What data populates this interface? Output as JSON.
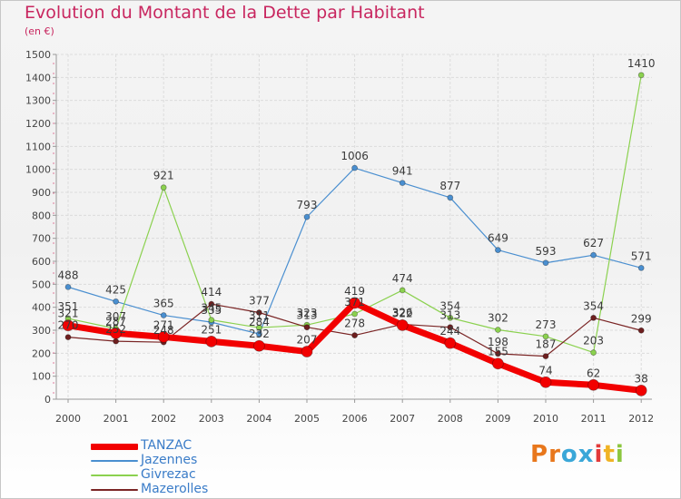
{
  "header": {
    "title": "Evolution du Montant de la Dette par Habitant",
    "subtitle": "(en €)"
  },
  "brand": {
    "text": "Proxiti",
    "colors": [
      "#e8771c",
      "#e8771c",
      "#3aa7d8",
      "#3aa7d8",
      "#e23a3a",
      "#f0b324",
      "#8cc63e"
    ]
  },
  "chart_data": {
    "type": "line",
    "x": [
      "2000",
      "2001",
      "2002",
      "2003",
      "2004",
      "2005",
      "2006",
      "2007",
      "2008",
      "2009",
      "2010",
      "2011",
      "2012"
    ],
    "y_ticks": [
      0,
      100,
      200,
      300,
      400,
      500,
      600,
      700,
      800,
      900,
      1000,
      1100,
      1200,
      1300,
      1400,
      1500
    ],
    "ylim": [
      0,
      1500
    ],
    "grid": true,
    "legend_position": "bottom-left",
    "series": [
      {
        "name": "Jazennes",
        "color": "#4a8fd0",
        "marker_fill": "#4a8fd0",
        "width": 1.2,
        "marker_radius": 3,
        "values": [
          488,
          425,
          365,
          335,
          284,
          793,
          1006,
          941,
          877,
          649,
          593,
          627,
          571
        ],
        "labels": [
          "488",
          "425",
          "365",
          "335",
          "284",
          "793",
          "1006",
          "941",
          "877",
          "649",
          "593",
          "627",
          "571"
        ]
      },
      {
        "name": "Givrezac",
        "color": "#8bd14f",
        "marker_fill": "#8bd14f",
        "width": 1.2,
        "marker_radius": 3,
        "values": [
          351,
          307,
          921,
          345,
          311,
          323,
          371,
          474,
          354,
          302,
          273,
          203,
          1410
        ],
        "labels": [
          "351",
          "307",
          "921",
          "345",
          "311",
          "323",
          "371",
          "474",
          "354",
          "302",
          "273",
          "203",
          "1410"
        ]
      },
      {
        "name": "Mazerolles",
        "color": "#7a2525",
        "marker_fill": "#6e1f1f",
        "width": 1.2,
        "marker_radius": 3,
        "values": [
          270,
          252,
          248,
          414,
          377,
          313,
          278,
          326,
          313,
          198,
          187,
          354,
          299
        ],
        "labels": [
          "270",
          "252",
          "248",
          "414",
          "377",
          "313",
          "278",
          "326",
          "313",
          "198",
          "187",
          "354",
          "299"
        ]
      },
      {
        "name": "TANZAC",
        "color": "#f20000",
        "marker_fill": "#f20000",
        "width": 7,
        "marker_radius": 6,
        "values": [
          321,
          287,
          271,
          251,
          232,
          207,
          419,
          322,
          244,
          155,
          74,
          62,
          38
        ],
        "labels": [
          "321",
          "287",
          "271",
          "251",
          "232",
          "207",
          "419",
          "322",
          "244",
          "155",
          "74",
          "62",
          "38"
        ]
      }
    ],
    "legend": [
      {
        "name": "TANZAC",
        "color": "#f20000",
        "thickness": 7
      },
      {
        "name": "Jazennes",
        "color": "#4a8fd0",
        "thickness": 2
      },
      {
        "name": "Givrezac",
        "color": "#8bd14f",
        "thickness": 2
      },
      {
        "name": "Mazerolles",
        "color": "#7a2525",
        "thickness": 2
      }
    ]
  }
}
